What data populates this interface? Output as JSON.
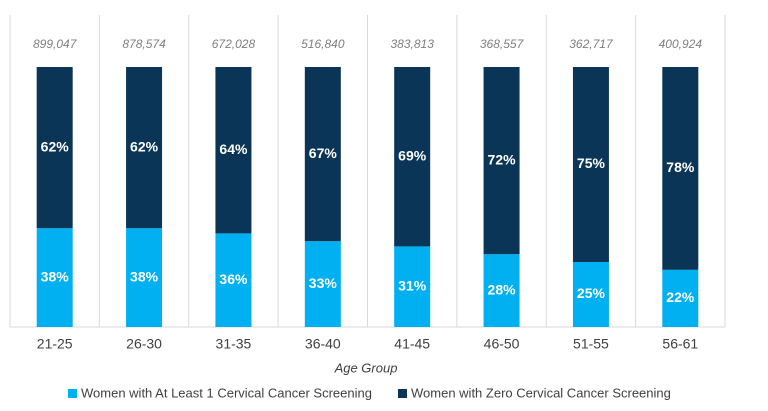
{
  "chart_data": {
    "type": "stacked_bar_100",
    "x_label": "Age Group",
    "categories": [
      "21-25",
      "26-30",
      "31-35",
      "36-40",
      "41-45",
      "46-50",
      "51-55",
      "56-61"
    ],
    "series": [
      {
        "name": "Women with At Least 1 Cervical Cancer Screening",
        "color": "#00b0f0",
        "values": [
          38,
          38,
          36,
          33,
          31,
          28,
          25,
          22
        ],
        "value_labels": [
          "38%",
          "38%",
          "36%",
          "33%",
          "31%",
          "28%",
          "25%",
          "22%"
        ]
      },
      {
        "name": "Women with Zero Cervical Cancer Screening",
        "color": "#0b3556",
        "values": [
          62,
          62,
          64,
          67,
          69,
          72,
          75,
          78
        ],
        "value_labels": [
          "62%",
          "62%",
          "64%",
          "67%",
          "69%",
          "72%",
          "75%",
          "78%"
        ]
      }
    ],
    "totals": {
      "values": [
        899047,
        878574,
        672028,
        516840,
        383813,
        368557,
        362717,
        400924
      ],
      "value_labels": [
        "899,047",
        "878,574",
        "672,028",
        "516,840",
        "383,813",
        "368,557",
        "362,717",
        "400,924"
      ]
    },
    "ylim": [
      0,
      100
    ]
  }
}
